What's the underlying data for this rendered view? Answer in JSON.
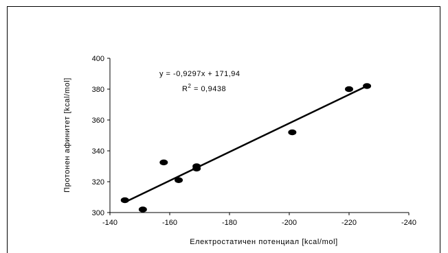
{
  "chart_data": {
    "type": "scatter",
    "xlabel": "Електростатичен потенциал [kcal/mol]",
    "ylabel": "Протонен афинитет [kcal/mol]",
    "x_axis_reversed": true,
    "xlim": [
      -140,
      -240
    ],
    "ylim": [
      300,
      400
    ],
    "x_ticks": [
      -140,
      -160,
      -180,
      -200,
      -220,
      -240
    ],
    "y_ticks": [
      300,
      320,
      340,
      360,
      380,
      400
    ],
    "x_tick_labels": [
      "-140",
      "-160",
      "-180",
      "-200",
      "-220",
      "-240"
    ],
    "y_tick_labels": [
      "300",
      "320",
      "340",
      "360",
      "380",
      "400"
    ],
    "points": [
      {
        "x": -145,
        "y": 308
      },
      {
        "x": -151,
        "y": 302
      },
      {
        "x": -158,
        "y": 332.5
      },
      {
        "x": -163,
        "y": 321
      },
      {
        "x": -169,
        "y": 330
      },
      {
        "x": -169,
        "y": 328.5
      },
      {
        "x": -201,
        "y": 352
      },
      {
        "x": -220,
        "y": 380
      },
      {
        "x": -226,
        "y": 382
      }
    ],
    "trendline": {
      "type": "linear",
      "slope": -0.9297,
      "intercept": 171.94,
      "x_range": [
        -145,
        -226
      ],
      "equation": "y = -0,9297x + 171,94",
      "r2_label": "R",
      "r2_sup": "2",
      "r2_value": " = 0,9438"
    },
    "grid": false,
    "legend": "none",
    "marker_color": "#000000",
    "line_color": "#000000"
  }
}
